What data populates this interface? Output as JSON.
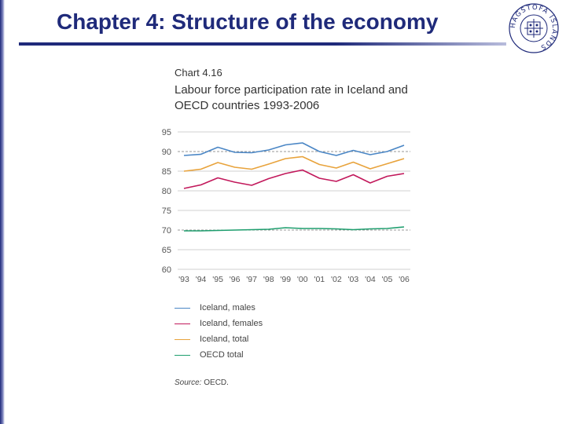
{
  "slide": {
    "title": "Chapter 4: Structure of the economy",
    "seal_text": "HAGSTOFA ÍSLANDS"
  },
  "chart_data": {
    "type": "line",
    "number": "Chart 4.16",
    "title": "Labour force participation rate in Iceland and OECD countries 1993-2006",
    "categories": [
      "'93",
      "'94",
      "'95",
      "'96",
      "'97",
      "'98",
      "'99",
      "'00",
      "'01",
      "'02",
      "'03",
      "'04",
      "'05",
      "'06"
    ],
    "ylim": [
      60,
      95
    ],
    "yticks": [
      "95",
      "90",
      "85",
      "80",
      "75",
      "70",
      "65",
      "60"
    ],
    "grid": "y",
    "series": [
      {
        "name": "Iceland, males",
        "color": "#4a86c5",
        "values": [
          89.0,
          89.3,
          91.1,
          89.8,
          89.7,
          90.4,
          91.7,
          92.2,
          90.0,
          89.0,
          90.3,
          89.2,
          90.0,
          91.6
        ]
      },
      {
        "name": "Iceland, females",
        "color": "#c2185b",
        "values": [
          80.6,
          81.5,
          83.3,
          82.2,
          81.4,
          83.1,
          84.4,
          85.3,
          83.2,
          82.4,
          84.1,
          82.0,
          83.7,
          84.4
        ]
      },
      {
        "name": "Iceland, total",
        "color": "#e8a33c",
        "values": [
          85.0,
          85.5,
          87.2,
          86.0,
          85.5,
          86.8,
          88.2,
          88.7,
          86.7,
          85.8,
          87.3,
          85.6,
          86.9,
          88.2
        ]
      },
      {
        "name": "OECD total",
        "color": "#1e9e6e",
        "values": [
          69.8,
          69.8,
          69.9,
          70.0,
          70.1,
          70.2,
          70.6,
          70.4,
          70.4,
          70.3,
          70.1,
          70.3,
          70.4,
          70.8
        ]
      }
    ],
    "source_label": "Source:",
    "source_text": "OECD."
  }
}
